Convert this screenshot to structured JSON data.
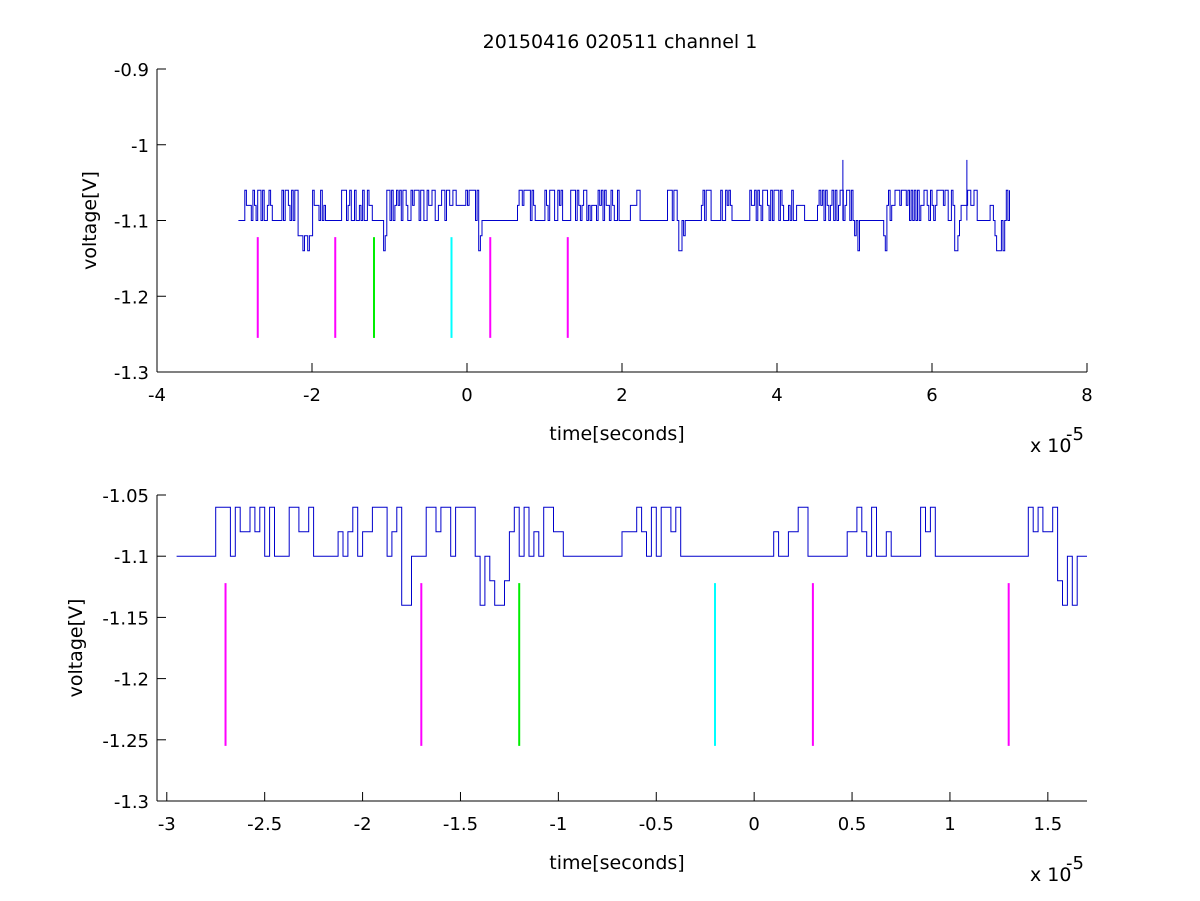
{
  "figure": {
    "title": "20150416 020511 channel 1"
  },
  "chart_data": [
    {
      "type": "line",
      "xlabel": "time[seconds]",
      "ylabel": "voltage[V]",
      "x_multiplier_label": "x 10",
      "x_multiplier_exp": "-5",
      "xlim": [
        -4,
        8
      ],
      "ylim": [
        -1.3,
        -0.9
      ],
      "x_ticks": [
        -4,
        -2,
        0,
        2,
        4,
        6,
        8
      ],
      "x_tick_labels": [
        "-4",
        "-2",
        "0",
        "2",
        "4",
        "6",
        "8"
      ],
      "y_ticks": [
        -1.3,
        -1.2,
        -1.1,
        -1.0,
        -0.9
      ],
      "y_tick_labels": [
        "-1.3",
        "-1.2",
        "-1.1",
        "-1",
        "-0.9"
      ],
      "signal": {
        "color": "#0000cc",
        "x_range": [
          -2.95,
          7.0
        ],
        "baseline": -1.1,
        "levels": [
          -1.14,
          -1.12,
          -1.1,
          -1.08,
          -1.06
        ],
        "spikes": [
          {
            "x": 4.85,
            "y": -1.02
          },
          {
            "x": 6.45,
            "y": -1.02
          }
        ]
      },
      "markers": [
        {
          "x": -2.7,
          "color": "#ff00ff",
          "y_from": -1.122,
          "y_to": -1.255
        },
        {
          "x": -1.7,
          "color": "#ff00ff",
          "y_from": -1.122,
          "y_to": -1.255
        },
        {
          "x": -1.2,
          "color": "#00ee00",
          "y_from": -1.122,
          "y_to": -1.255
        },
        {
          "x": -0.2,
          "color": "#00ffff",
          "y_from": -1.122,
          "y_to": -1.255
        },
        {
          "x": 0.3,
          "color": "#ff00ff",
          "y_from": -1.122,
          "y_to": -1.255
        },
        {
          "x": 1.3,
          "color": "#ff00ff",
          "y_from": -1.122,
          "y_to": -1.255
        }
      ]
    },
    {
      "type": "line",
      "xlabel": "time[seconds]",
      "ylabel": "voltage[V]",
      "x_multiplier_label": "x 10",
      "x_multiplier_exp": "-5",
      "xlim": [
        -3.05,
        1.7
      ],
      "ylim": [
        -1.3,
        -1.05
      ],
      "x_ticks": [
        -3,
        -2.5,
        -2,
        -1.5,
        -1,
        -0.5,
        0,
        0.5,
        1,
        1.5
      ],
      "x_tick_labels": [
        "-3",
        "-2.5",
        "-2",
        "-1.5",
        "-1",
        "-0.5",
        "0",
        "0.5",
        "1",
        "1.5"
      ],
      "y_ticks": [
        -1.3,
        -1.25,
        -1.2,
        -1.15,
        -1.1,
        -1.05
      ],
      "y_tick_labels": [
        "-1.3",
        "-1.25",
        "-1.2",
        "-1.15",
        "-1.1",
        "-1.05"
      ],
      "signal": {
        "color": "#0000cc",
        "x_range": [
          -2.95,
          1.7
        ],
        "baseline": -1.1,
        "levels": [
          -1.14,
          -1.12,
          -1.1,
          -1.08,
          -1.06
        ],
        "spikes": []
      },
      "markers": [
        {
          "x": -2.7,
          "color": "#ff00ff",
          "y_from": -1.122,
          "y_to": -1.255
        },
        {
          "x": -1.7,
          "color": "#ff00ff",
          "y_from": -1.122,
          "y_to": -1.255
        },
        {
          "x": -1.2,
          "color": "#00ee00",
          "y_from": -1.122,
          "y_to": -1.255
        },
        {
          "x": -0.2,
          "color": "#00ffff",
          "y_from": -1.122,
          "y_to": -1.255
        },
        {
          "x": 0.3,
          "color": "#ff00ff",
          "y_from": -1.122,
          "y_to": -1.255
        },
        {
          "x": 1.3,
          "color": "#ff00ff",
          "y_from": -1.122,
          "y_to": -1.255
        }
      ]
    }
  ]
}
